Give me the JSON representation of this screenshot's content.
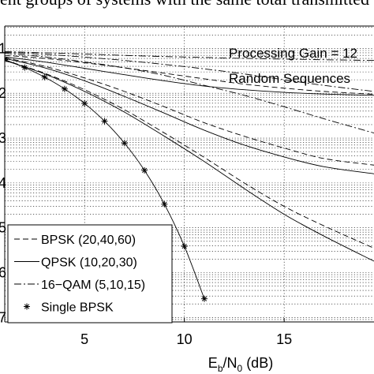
{
  "caption": "ent groups of systems with the same total transmitted bit",
  "chart_data": {
    "type": "line",
    "xlabel": "Eb/N0 (dB)",
    "xlabel_parts": {
      "main": "E",
      "sub1": "b",
      "mid": "/N",
      "sub2": "0",
      "tail": " (dB)"
    },
    "xlim": [
      1,
      19.5
    ],
    "ylim_decades": [
      -7.1,
      -0.5
    ],
    "y_scale": "log",
    "grid": true,
    "xticks": [
      5,
      10,
      15
    ],
    "yticks": [
      {
        "exp": -1,
        "label": "1"
      },
      {
        "exp": -2,
        "label": "2"
      },
      {
        "exp": -3,
        "label": "3"
      },
      {
        "exp": -4,
        "label": "4"
      },
      {
        "exp": -5,
        "label": "5"
      },
      {
        "exp": -6,
        "label": "6"
      },
      {
        "exp": -7,
        "label": "7"
      }
    ],
    "annotations": [
      "Processing Gain = 12",
      "Random Sequences"
    ],
    "legend_position": "lower-left",
    "legend": [
      {
        "label": "BPSK (20,40,60)",
        "style": "dashed"
      },
      {
        "label": "QPSK (10,20,30)",
        "style": "solid"
      },
      {
        "label": "16−QAM (5,10,15)",
        "style": "dashdot"
      },
      {
        "label": "Single BPSK",
        "style": "star"
      }
    ],
    "series": [
      {
        "name": "BPSK (20,40,60)",
        "style": "dashed",
        "x": [
          1,
          3,
          5,
          7,
          9,
          11,
          13,
          15,
          17,
          19.5
        ],
        "y": [
          0.07,
          0.06,
          0.048,
          0.037,
          0.028,
          0.021,
          0.016,
          0.013,
          0.011,
          0.0095
        ]
      },
      {
        "name": "BPSK (20,40,60)",
        "style": "dashed",
        "x": [
          1,
          3,
          5,
          7,
          9,
          11,
          13,
          15,
          17,
          19.5
        ],
        "y": [
          0.062,
          0.04,
          0.022,
          0.011,
          0.005,
          0.0022,
          0.0011,
          0.0006,
          0.00035,
          0.00025
        ]
      },
      {
        "name": "BPSK (20,40,60)",
        "style": "dashed",
        "x": [
          1,
          3,
          5,
          7,
          9,
          11,
          13,
          15,
          17,
          19.5
        ],
        "y": [
          0.055,
          0.028,
          0.012,
          0.0043,
          0.0013,
          0.00037,
          0.0001,
          3e-05,
          1.1e-05,
          3.5e-06
        ]
      },
      {
        "name": "QPSK (10,20,30)",
        "style": "solid",
        "x": [
          1,
          3,
          5,
          7,
          9,
          11,
          13,
          15,
          17,
          19.5
        ],
        "y": [
          0.065,
          0.05,
          0.036,
          0.026,
          0.019,
          0.0145,
          0.012,
          0.0105,
          0.0096,
          0.009
        ]
      },
      {
        "name": "QPSK (10,20,30)",
        "style": "solid",
        "x": [
          1,
          3,
          5,
          7,
          9,
          11,
          13,
          15,
          17,
          19.5
        ],
        "y": [
          0.06,
          0.037,
          0.019,
          0.0085,
          0.0036,
          0.0015,
          0.0007,
          0.00038,
          0.00023,
          0.00016
        ]
      },
      {
        "name": "QPSK (10,20,30)",
        "style": "solid",
        "x": [
          1,
          3,
          5,
          7,
          9,
          11,
          13,
          15,
          17,
          19.5
        ],
        "y": [
          0.054,
          0.027,
          0.011,
          0.0038,
          0.0011,
          0.0003,
          7.5e-05,
          2e-05,
          6.5e-06,
          1.8e-06
        ]
      },
      {
        "name": "16−QAM (5,10,15)",
        "style": "dashdot",
        "x": [
          1,
          3,
          5,
          7,
          9,
          11,
          13,
          15,
          17,
          19.5
        ],
        "y": [
          0.085,
          0.08,
          0.075,
          0.07,
          0.066,
          0.063,
          0.06,
          0.058,
          0.056,
          0.054
        ]
      },
      {
        "name": "16−QAM (5,10,15)",
        "style": "dashdot",
        "x": [
          1,
          3,
          5,
          7,
          9,
          11,
          13,
          15,
          17,
          19.5
        ],
        "y": [
          0.082,
          0.074,
          0.064,
          0.054,
          0.044,
          0.035,
          0.027,
          0.02,
          0.015,
          0.011
        ]
      },
      {
        "name": "16−QAM (5,10,15)",
        "style": "dashdot",
        "x": [
          1,
          3,
          5,
          7,
          9,
          11,
          13,
          15,
          17,
          19.5
        ],
        "y": [
          0.078,
          0.065,
          0.05,
          0.037,
          0.025,
          0.015,
          0.009,
          0.005,
          0.0027,
          0.0013
        ]
      },
      {
        "name": "Single BPSK",
        "style": "star",
        "x": [
          1,
          2,
          3,
          4,
          5,
          6,
          7,
          8,
          9,
          10,
          11
        ],
        "y": [
          0.0563,
          0.0375,
          0.0229,
          0.0125,
          0.00595,
          0.00239,
          0.000773,
          0.000191,
          3.36e-05,
          3.87e-06,
          2.61e-07
        ]
      }
    ]
  }
}
